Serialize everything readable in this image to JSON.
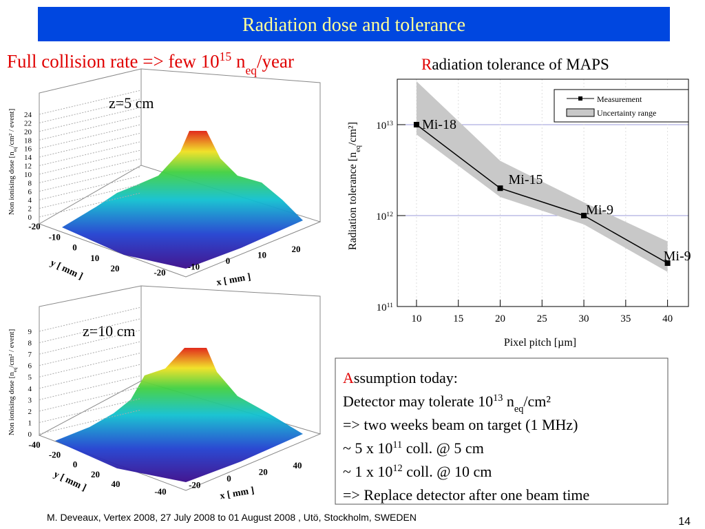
{
  "slide": {
    "title": "Radiation dose and tolerance",
    "heading": [
      {
        "t": "Full collision rate => few 10"
      },
      {
        "t": "15",
        "s": "sup"
      },
      {
        "t": " n"
      },
      {
        "t": "eq",
        "s": "sub"
      },
      {
        "t": "/year"
      }
    ],
    "plots": [
      {
        "label": "z=5 cm",
        "z_label": [
          {
            "t": "Non ionising dose [n"
          },
          {
            "t": "eq",
            "s": "sub"
          },
          {
            "t": "/cm² / event]"
          }
        ],
        "zticks": [
          0,
          2,
          4,
          6,
          8,
          10,
          12,
          14,
          16,
          18,
          20,
          22,
          24
        ],
        "yticks": [
          -20,
          -10,
          0,
          10,
          20
        ],
        "xticks": [
          -20,
          -10,
          0,
          10,
          20
        ],
        "y_label": "y [ mm ]",
        "x_label": "x [ mm ]"
      },
      {
        "label": "z=10 cm",
        "z_label": [
          {
            "t": "Non ionising dose [n"
          },
          {
            "t": "eq",
            "s": "sub"
          },
          {
            "t": "/cm² / event]"
          }
        ],
        "zticks": [
          0,
          1,
          2,
          3,
          4,
          5,
          6,
          7,
          8,
          9
        ],
        "yticks": [
          -40,
          -20,
          0,
          20,
          40
        ],
        "xticks": [
          -40,
          -20,
          0,
          20,
          40
        ],
        "y_label": "y [ mm ]",
        "x_label": "x [ mm ]"
      }
    ],
    "textbox": [
      [
        {
          "t": "A",
          "c": "#e00000"
        },
        {
          "t": "ssumption today:"
        }
      ],
      [
        {
          "t": "Detector may tolerate 10"
        },
        {
          "t": "13",
          "s": "sup"
        },
        {
          "t": " n"
        },
        {
          "t": "eq",
          "s": "sub"
        },
        {
          "t": "/cm²"
        }
      ],
      [
        {
          "t": "=> two weeks beam on target (1 MHz)"
        }
      ],
      [
        {
          "t": "~ 5 x 10"
        },
        {
          "t": "11",
          "s": "sup"
        },
        {
          "t": " coll. @   5 cm"
        }
      ],
      [
        {
          "t": "~ 1 x 10"
        },
        {
          "t": "12",
          "s": "sup"
        },
        {
          "t": " coll. @ 10 cm"
        }
      ],
      [
        {
          "t": "=> Replace detector after one beam time"
        }
      ]
    ],
    "footer": "M. Deveaux, Vertex 2008, 27 July 2008 to 01 August 2008 , Utö, Stockholm, SWEDEN",
    "page_number": "14"
  },
  "chart_data": {
    "type": "line",
    "title": [
      {
        "t": "R",
        "c": "#e00000"
      },
      {
        "t": "adiation tolerance of MAPS"
      }
    ],
    "x_label": "Pixel pitch [µm]",
    "y_label": [
      {
        "t": "Radiation tolerance [n"
      },
      {
        "t": "eq",
        "s": "sub"
      },
      {
        "t": "/cm²]"
      }
    ],
    "x": [
      10,
      20,
      30,
      40
    ],
    "series": [
      {
        "name": "Measurement",
        "color": "#000000",
        "values": [
          10000000000000.0,
          2000000000000.0,
          1000000000000.0,
          300000000000.0
        ]
      },
      {
        "name": "Uncertainty range",
        "color": "#c8c8c8",
        "upper": [
          30000000000000.0,
          4000000000000.0,
          1400000000000.0,
          520000000000.0
        ],
        "lower": [
          7800000000000.0,
          1600000000000.0,
          800000000000.0,
          240000000000.0
        ]
      }
    ],
    "annotations": [
      "Mi-18",
      "Mi-15",
      "Mi-9",
      "Mi-9"
    ],
    "log_y": true,
    "ylim": [
      100000000000.0,
      31600000000000.0
    ],
    "yticks": [
      {
        "value": 100000000000.0,
        "label": "10",
        "exponent": "11"
      },
      {
        "value": 1000000000000.0,
        "label": "10",
        "exponent": "12"
      },
      {
        "value": 10000000000000.0,
        "label": "10",
        "exponent": "13"
      }
    ],
    "xlim": [
      7.7,
      42.5
    ],
    "xticks": [
      10,
      15,
      20,
      25,
      30,
      35,
      40
    ],
    "grid": true,
    "legend": "upper right"
  }
}
